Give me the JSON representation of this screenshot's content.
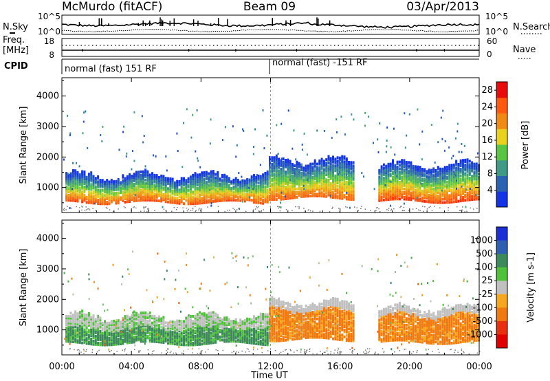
{
  "header": {
    "station": "McMurdo (fitACF)",
    "beam": "Beam 09",
    "date": "03/Apr/2013"
  },
  "noise_panel": {
    "left_label": "N.Sky",
    "right_label": "N.Search",
    "left_ticks": [
      "10^5",
      "10^0"
    ],
    "right_ticks": [
      "10^5",
      "10^0"
    ]
  },
  "freq_panel": {
    "left_label_1": "Freq.",
    "left_label_2": "[MHz]",
    "left_ticks": [
      "18",
      "8"
    ],
    "right_label": "Nave",
    "right_ticks": [
      "60",
      "0"
    ]
  },
  "cpid_panel": {
    "label": "CPID",
    "segments": [
      {
        "start_hour": 0,
        "text": "normal (fast) 151 RF"
      },
      {
        "start_hour": 12,
        "text": "normal (fast) -151 RF"
      }
    ]
  },
  "xaxis": {
    "label": "Time UT",
    "ticks": [
      "00:00",
      "04:00",
      "08:00",
      "12:00",
      "16:00",
      "20:00",
      "00:00"
    ]
  },
  "chart_data": [
    {
      "type": "heatmap",
      "name": "power",
      "ylabel": "Slant Range [km]",
      "yticks": [
        1000,
        2000,
        3000,
        4000
      ],
      "ylim": [
        180,
        4600
      ],
      "xlim": [
        0,
        24
      ],
      "colorbar": {
        "label": "Power [dB]",
        "ticks": [
          4,
          8,
          12,
          16,
          20,
          24,
          28
        ],
        "range": [
          0,
          30
        ],
        "colors": [
          "#1432e6",
          "#2a62b4",
          "#3f9a86",
          "#58c640",
          "#e8d21e",
          "#f08a14",
          "#ff5a10",
          "#e80c0c"
        ]
      },
      "bands": [
        {
          "t0": 0.2,
          "t1": 11.9,
          "r0": 480,
          "r1": 1350,
          "peak": 28
        },
        {
          "t0": 11.9,
          "t1": 16.8,
          "r0": 620,
          "r1": 1850,
          "peak": 27
        },
        {
          "t0": 18.2,
          "t1": 24,
          "r0": 520,
          "r1": 1700,
          "peak": 29
        }
      ]
    },
    {
      "type": "heatmap",
      "name": "velocity",
      "ylabel": "Slant Range [km]",
      "yticks": [
        1000,
        2000,
        3000,
        4000
      ],
      "ylim": [
        180,
        4600
      ],
      "xlim": [
        0,
        24
      ],
      "colorbar": {
        "label": "Velocity [m s-1]",
        "ticks": [
          1000,
          500,
          100,
          25,
          -25,
          -100,
          -500,
          -1000
        ],
        "colors": [
          "#1a2fd6",
          "#2e5fb0",
          "#3c8a5a",
          "#4fc23a",
          "#c0c0c0",
          "#f5a81e",
          "#f07a10",
          "#e83010",
          "#e00000"
        ]
      },
      "bands": [
        {
          "t0": 0.2,
          "t1": 11.9,
          "r0": 520,
          "r1": 1400,
          "velocity": 300
        },
        {
          "t0": 11.9,
          "t1": 16.8,
          "r0": 650,
          "r1": 1850,
          "velocity": -300
        },
        {
          "t0": 18.2,
          "t1": 24,
          "r0": 560,
          "r1": 1650,
          "velocity": -300
        }
      ]
    }
  ]
}
